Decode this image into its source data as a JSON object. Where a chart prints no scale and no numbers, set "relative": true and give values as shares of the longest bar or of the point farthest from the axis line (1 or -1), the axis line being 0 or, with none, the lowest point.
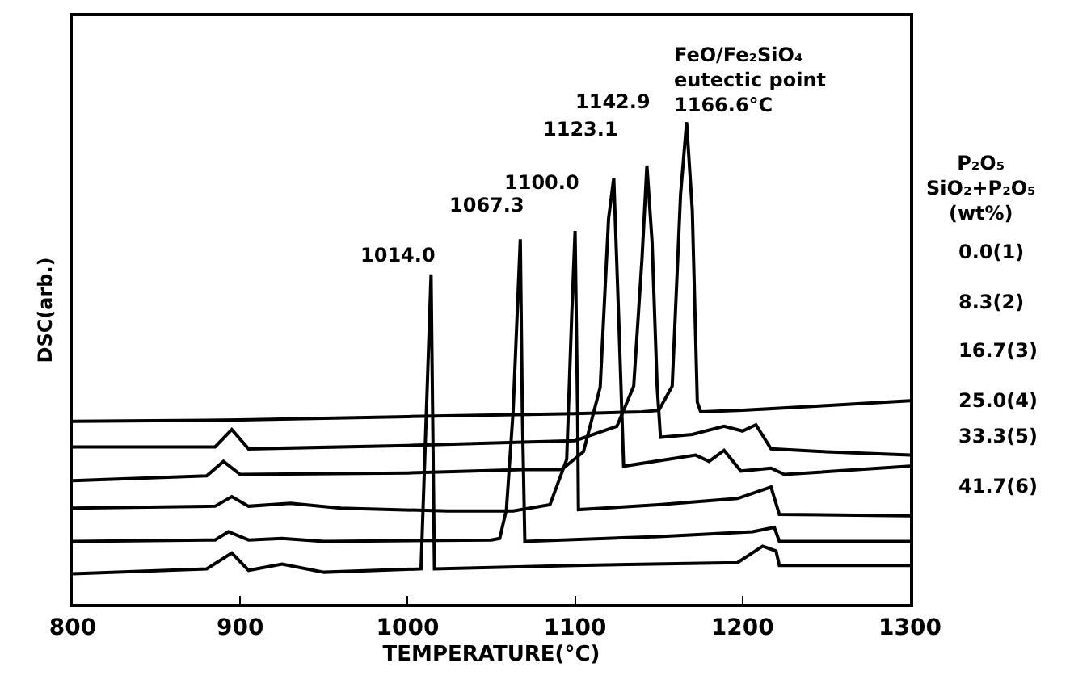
{
  "chart_data": {
    "type": "line",
    "relative": true,
    "xlabel": "TEMPERATURE(°C)",
    "ylabel": "DSC(arb.)",
    "legend_title": "P₂O₅\nSiO₂+P₂O₅\n(wt%)",
    "xlim": [
      800,
      1300
    ],
    "xticks": [
      800,
      900,
      1000,
      1100,
      1200,
      1300
    ],
    "tick_labels": "x",
    "legend": false,
    "marker": "none",
    "line_style": "solid",
    "series": [
      {
        "name": "0.0(1)",
        "color": "#000000",
        "x": [
          800,
          900,
          1000,
          1100,
          1140,
          1150,
          1158,
          1163,
          1166.6,
          1170,
          1173,
          1175,
          1200,
          1250,
          1300
        ],
        "values": [
          0.379,
          0.382,
          0.389,
          0.395,
          0.399,
          0.402,
          0.452,
          0.85,
          1,
          0.817,
          0.419,
          0.399,
          0.402,
          0.412,
          0.422
        ]
      },
      {
        "name": "8.3(2)",
        "color": "#000000",
        "x": [
          800,
          885,
          895,
          905,
          1000,
          1069,
          1100,
          1125,
          1135,
          1140,
          1142.9,
          1146,
          1149,
          1151,
          1170,
          1189,
          1200,
          1208,
          1217,
          1250,
          1300
        ],
        "values": [
          0.326,
          0.326,
          0.362,
          0.322,
          0.329,
          0.336,
          0.339,
          0.369,
          0.452,
          0.718,
          0.91,
          0.751,
          0.452,
          0.346,
          0.352,
          0.369,
          0.359,
          0.372,
          0.322,
          0.316,
          0.309
        ]
      },
      {
        "name": "16.7(3)",
        "color": "#000000",
        "x": [
          800,
          880,
          890,
          900,
          1000,
          1069,
          1092,
          1105,
          1115,
          1120,
          1123.1,
          1126,
          1129,
          1172,
          1180,
          1189,
          1199,
          1217,
          1225,
          1300
        ],
        "values": [
          0.256,
          0.266,
          0.296,
          0.269,
          0.272,
          0.279,
          0.279,
          0.316,
          0.45,
          0.8,
          0.884,
          0.6,
          0.286,
          0.309,
          0.296,
          0.319,
          0.276,
          0.282,
          0.269,
          0.286
        ]
      },
      {
        "name": "25.0(4)",
        "color": "#000000",
        "x": [
          800,
          885,
          895,
          905,
          930,
          960,
          1024,
          1063,
          1085,
          1095,
          1098,
          1100,
          1101.5,
          1102,
          1150,
          1197,
          1217,
          1222,
          1300
        ],
        "values": [
          0.199,
          0.203,
          0.223,
          0.203,
          0.209,
          0.199,
          0.193,
          0.193,
          0.206,
          0.3,
          0.6,
          0.774,
          0.4,
          0.196,
          0.206,
          0.219,
          0.243,
          0.186,
          0.183
        ]
      },
      {
        "name": "33.3(5)",
        "color": "#000000",
        "x": [
          800,
          885,
          893,
          905,
          925,
          950,
          1050,
          1055,
          1059,
          1063,
          1067.3,
          1068.5,
          1070,
          1150,
          1206,
          1219,
          1222,
          1300
        ],
        "values": [
          0.13,
          0.133,
          0.15,
          0.133,
          0.136,
          0.13,
          0.133,
          0.136,
          0.196,
          0.4,
          0.757,
          0.4,
          0.13,
          0.14,
          0.15,
          0.159,
          0.13,
          0.13
        ]
      },
      {
        "name": "41.7(6)",
        "color": "#000000",
        "x": [
          800,
          880,
          895,
          905,
          925,
          950,
          1008,
          1014,
          1016,
          1100,
          1197,
          1212,
          1220,
          1222,
          1300
        ],
        "values": [
          0.063,
          0.073,
          0.106,
          0.07,
          0.083,
          0.066,
          0.073,
          0.684,
          0.073,
          0.08,
          0.086,
          0.12,
          0.11,
          0.08,
          0.08
        ]
      }
    ],
    "annotations": [
      {
        "text": "1014.0",
        "x": 1014,
        "y": 0.684
      },
      {
        "text": "1067.3",
        "x": 1067.3,
        "y": 0.757
      },
      {
        "text": "1100.0",
        "x": 1100,
        "y": 0.774
      },
      {
        "text": "1123.1",
        "x": 1123.1,
        "y": 0.884
      },
      {
        "text": "1142.9",
        "x": 1142.9,
        "y": 0.91
      },
      {
        "text": "FeO/Fe₂SiO₄\neutectic point\n1166.6°C",
        "x": 1166.6,
        "y": 1
      }
    ]
  }
}
